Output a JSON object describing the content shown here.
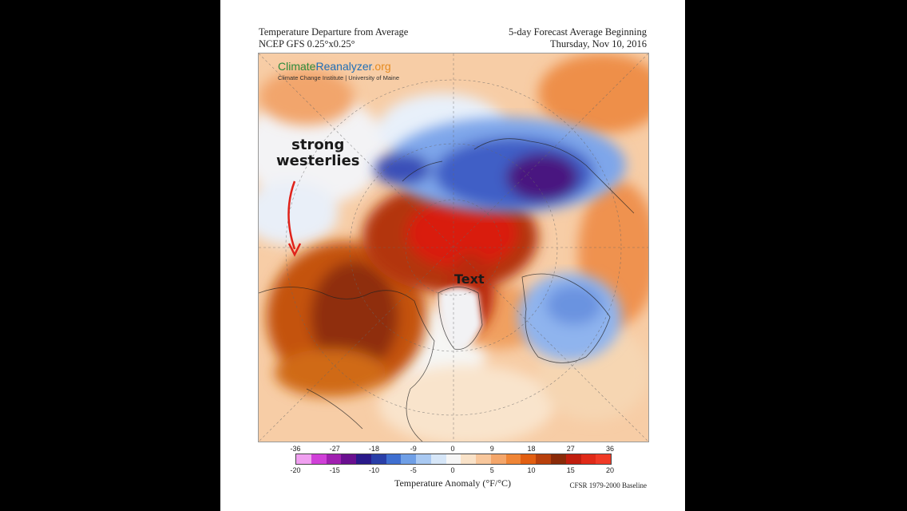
{
  "header": {
    "left_line1": "Temperature Departure from Average",
    "left_line2": "NCEP GFS 0.25°x0.25°",
    "right_line1": "5-day Forecast Average Beginning",
    "right_line2": "Thursday, Nov 10, 2016"
  },
  "logo": {
    "part1": "Climate",
    "part2": "Reanalyzer",
    "part3": ".org",
    "subtitle": "Climate Change Institute | University of Maine"
  },
  "annotations": {
    "strong_line1": "strong",
    "strong_line2": "westerlies",
    "map_text": "Text"
  },
  "colorbar": {
    "f_ticks": [
      "-36",
      "-27",
      "-18",
      "-9",
      "0",
      "9",
      "18",
      "27",
      "36"
    ],
    "c_ticks": [
      "-20",
      "-15",
      "-10",
      "-5",
      "0",
      "5",
      "10",
      "15",
      "20"
    ],
    "title": "Temperature Anomaly (°F/°C)",
    "baseline": "CFSR 1979-2000 Baseline",
    "colors": [
      "#f0a0f0",
      "#d040d8",
      "#a020b0",
      "#6a1090",
      "#2a1a8a",
      "#2a3fa8",
      "#3f6fd0",
      "#6f9fe6",
      "#a9c9f2",
      "#d6e6f8",
      "#f6f6f6",
      "#f9e2c8",
      "#f8c79c",
      "#f4a66a",
      "#ef8536",
      "#e25f12",
      "#b8400c",
      "#8a2a08",
      "#c01e0e",
      "#e02a18",
      "#f03a26"
    ]
  },
  "colors": {
    "warm_extreme": "#d31f12",
    "warm": "#c0440e",
    "cold_extreme": "#4a1880",
    "cold": "#4a6fd2"
  }
}
